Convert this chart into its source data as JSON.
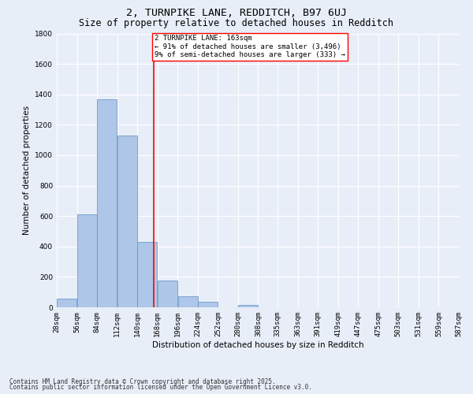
{
  "title1": "2, TURNPIKE LANE, REDDITCH, B97 6UJ",
  "title2": "Size of property relative to detached houses in Redditch",
  "xlabel": "Distribution of detached houses by size in Redditch",
  "ylabel": "Number of detached properties",
  "bin_edges": [
    28,
    56,
    84,
    112,
    140,
    168,
    196,
    224,
    252,
    280,
    308,
    335,
    363,
    391,
    419,
    447,
    475,
    503,
    531,
    559,
    587
  ],
  "bar_heights": [
    55,
    610,
    1370,
    1130,
    430,
    175,
    75,
    35,
    0,
    15,
    0,
    0,
    0,
    0,
    0,
    0,
    0,
    0,
    0,
    0
  ],
  "bar_color": "#aec6e8",
  "bar_edgecolor": "#5a8fc2",
  "vline_x": 163,
  "vline_color": "red",
  "annotation_text": "2 TURNPIKE LANE: 163sqm\n← 91% of detached houses are smaller (3,496)\n9% of semi-detached houses are larger (333) →",
  "annotation_box_color": "white",
  "annotation_box_edgecolor": "red",
  "ylim": [
    0,
    1800
  ],
  "yticks": [
    0,
    200,
    400,
    600,
    800,
    1000,
    1200,
    1400,
    1600,
    1800
  ],
  "background_color": "#e8eef8",
  "grid_color": "white",
  "footnote1": "Contains HM Land Registry data © Crown copyright and database right 2025.",
  "footnote2": "Contains public sector information licensed under the Open Government Licence v3.0.",
  "title1_fontsize": 9.5,
  "title2_fontsize": 8.5,
  "axis_label_fontsize": 7.5,
  "tick_fontsize": 6.5,
  "annot_fontsize": 6.5,
  "footnote_fontsize": 5.5
}
